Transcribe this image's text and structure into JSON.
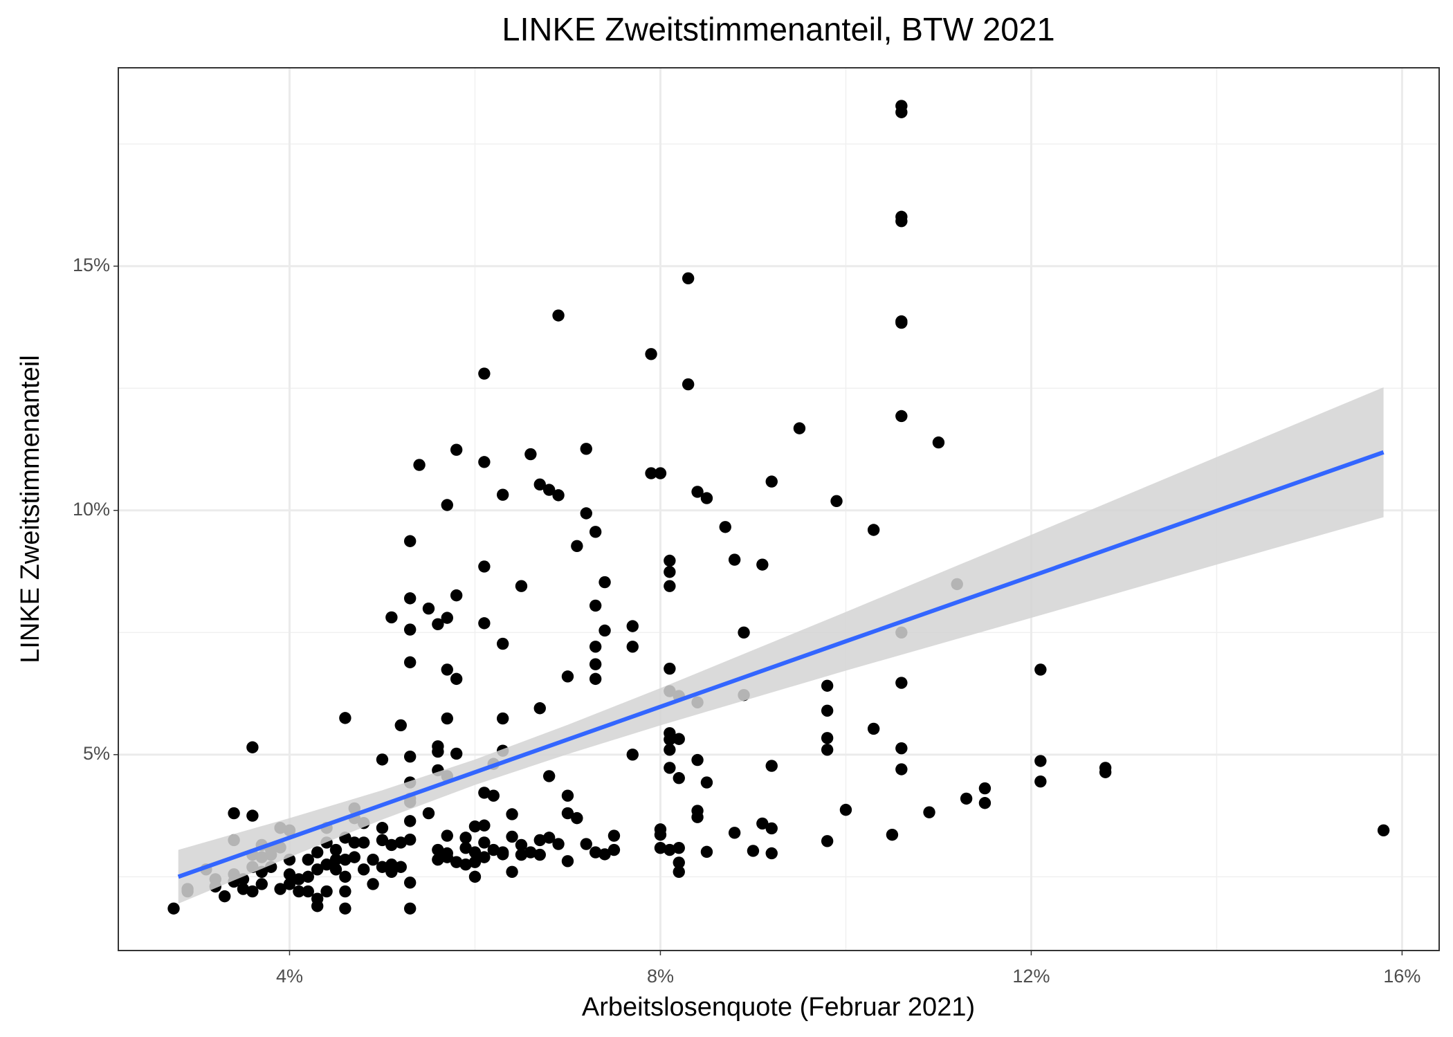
{
  "chart_data": {
    "type": "scatter",
    "title": "LINKE Zweitstimmenanteil, BTW 2021",
    "x_label": "Arbeitslosenquote (Februar 2021)",
    "y_label": "LINKE Zweitstimmenanteil",
    "xlim": [
      2.153,
      16.4
    ],
    "ylim": [
      0.99,
      19.06
    ],
    "xticks": [
      {
        "value": 4,
        "label": "4%"
      },
      {
        "value": 8,
        "label": "8%"
      },
      {
        "value": 12,
        "label": "12%"
      },
      {
        "value": 16,
        "label": "16%"
      }
    ],
    "yticks": [
      {
        "value": 5,
        "label": "5%"
      },
      {
        "value": 10,
        "label": "10%"
      },
      {
        "value": 15,
        "label": "15%"
      }
    ],
    "x_minor_grid": [
      6,
      10,
      14
    ],
    "y_minor_grid": [
      2.5,
      7.5,
      12.5,
      17.5
    ],
    "grid": true,
    "point_color": "#000000",
    "x": [
      10.6,
      10.6,
      10.6,
      10.6,
      10.6,
      10.6,
      10.6,
      10.6,
      10.6,
      10.6,
      10.6,
      6.9,
      6.9,
      8.3,
      8.3,
      7.9,
      6.1,
      6.1,
      6.1,
      6.1,
      6.1,
      6.1,
      5.8,
      5.8,
      5.8,
      5.8,
      5.4,
      5.3,
      5.3,
      5.3,
      5.3,
      5.3,
      5.3,
      5.3,
      5.3,
      5.3,
      5.3,
      5.3,
      5.3,
      6.6,
      6.7,
      6.7,
      6.8,
      6.8,
      6.9,
      7.2,
      7.2,
      7.2,
      7.3,
      7.3,
      7.3,
      7.3,
      7.3,
      7.1,
      7.1,
      7.0,
      7.0,
      7.0,
      7.0,
      7.4,
      7.4,
      7.4,
      6.3,
      6.3,
      6.3,
      6.3,
      5.7,
      5.7,
      5.7,
      5.7,
      5.7,
      5.7,
      5.7,
      5.6,
      5.6,
      5.6,
      5.6,
      5.5,
      5.5,
      5.1,
      6.5,
      8.0,
      8.0,
      8.0,
      8.0,
      7.9,
      8.4,
      8.4,
      8.4,
      8.4,
      8.4,
      8.5,
      8.5,
      8.5,
      8.1,
      8.1,
      8.1,
      8.1,
      8.1,
      8.1,
      8.1,
      8.1,
      8.1,
      8.1,
      8.2,
      8.2,
      8.2,
      8.2,
      8.2,
      8.2,
      8.7,
      8.8,
      8.8,
      8.9,
      8.9,
      9.1,
      9.1,
      9.2,
      9.2,
      9.2,
      9.2,
      9.0,
      9.5,
      9.9,
      9.8,
      9.8,
      9.8,
      9.8,
      9.8,
      10.0,
      10.3,
      10.3,
      10.5,
      10.9,
      11.0,
      11.2,
      11.3,
      11.5,
      11.5,
      12.1,
      12.1,
      12.1,
      12.8,
      12.8,
      15.8,
      7.7,
      7.7,
      7.7,
      7.5,
      7.5,
      6.0,
      6.0,
      6.2,
      6.2,
      6.3,
      6.4,
      6.4,
      6.4,
      5.9,
      5.9,
      2.75,
      2.9,
      2.9,
      3.1,
      3.2,
      3.2,
      3.3,
      3.4,
      3.4,
      3.4,
      3.4,
      3.5,
      3.5,
      3.6,
      3.6,
      3.6,
      3.6,
      3.6,
      3.7,
      3.7,
      3.7,
      3.7,
      3.8,
      3.8,
      3.9,
      3.9,
      3.9,
      4.0,
      4.0,
      4.0,
      4.0,
      4.1,
      4.1,
      4.2,
      4.2,
      4.3,
      4.3,
      4.3,
      4.3,
      4.4,
      4.4,
      4.4,
      4.4,
      4.5,
      4.5,
      4.6,
      4.6,
      4.6,
      4.6,
      4.6,
      4.6,
      4.7,
      4.7,
      4.7,
      4.7,
      4.8,
      4.8,
      4.8,
      4.9,
      4.9,
      5.0,
      5.0,
      5.0,
      5.0,
      5.1,
      5.1,
      5.1,
      5.2,
      5.2,
      5.2,
      5.6,
      5.6,
      5.7,
      5.8,
      5.9,
      6.0,
      6.0,
      6.1,
      6.1,
      6.2,
      6.3,
      6.5,
      6.5,
      6.6,
      6.7,
      6.7,
      6.8,
      7.3,
      4.2,
      3.8,
      4.5
    ],
    "y": [
      18.28,
      18.15,
      16.01,
      15.92,
      13.87,
      13.84,
      11.93,
      7.5,
      6.47,
      5.13,
      4.7,
      13.99,
      3.17,
      14.75,
      12.58,
      13.2,
      12.8,
      10.99,
      8.85,
      7.69,
      4.22,
      3.55,
      11.24,
      8.26,
      6.55,
      5.02,
      10.93,
      9.37,
      8.2,
      7.56,
      6.89,
      4.96,
      4.43,
      4.1,
      4.03,
      3.64,
      3.26,
      2.38,
      1.85,
      11.15,
      10.53,
      5.95,
      10.42,
      4.56,
      10.31,
      11.26,
      9.94,
      3.17,
      9.56,
      8.05,
      7.21,
      6.85,
      6.55,
      9.27,
      3.7,
      6.6,
      4.16,
      3.8,
      2.82,
      8.53,
      7.54,
      2.96,
      10.32,
      7.27,
      5.74,
      5.08,
      10.11,
      7.8,
      6.74,
      5.74,
      4.56,
      3.34,
      2.98,
      7.67,
      5.17,
      5.06,
      4.68,
      7.99,
      3.8,
      7.81,
      8.45,
      10.76,
      3.47,
      3.36,
      3.09,
      10.76,
      10.38,
      6.07,
      4.89,
      3.85,
      3.72,
      10.25,
      4.43,
      3.01,
      8.97,
      8.74,
      8.45,
      6.76,
      6.3,
      5.44,
      5.31,
      5.1,
      4.73,
      3.05,
      6.2,
      5.32,
      4.52,
      3.09,
      2.79,
      2.6,
      9.66,
      8.99,
      3.4,
      7.5,
      6.22,
      8.89,
      3.59,
      10.59,
      4.77,
      3.49,
      2.98,
      3.03,
      11.68,
      10.19,
      6.41,
      5.9,
      5.34,
      5.1,
      3.23,
      3.87,
      9.6,
      5.53,
      3.36,
      3.82,
      11.39,
      8.49,
      4.1,
      4.31,
      4.01,
      6.74,
      4.87,
      4.45,
      4.73,
      4.64,
      3.45,
      7.63,
      7.21,
      5.0,
      3.34,
      3.05,
      2.5,
      3.53,
      4.81,
      4.16,
      2.96,
      3.78,
      3.32,
      2.6,
      3.09,
      2.75,
      1.85,
      2.25,
      2.2,
      2.65,
      2.45,
      2.3,
      2.1,
      3.8,
      3.25,
      2.55,
      2.4,
      2.45,
      2.25,
      5.15,
      3.75,
      2.95,
      2.7,
      2.2,
      3.15,
      2.9,
      2.6,
      2.35,
      3.05,
      2.7,
      3.1,
      3.5,
      2.25,
      3.45,
      2.85,
      2.55,
      2.35,
      2.45,
      2.2,
      2.85,
      2.2,
      3.0,
      2.65,
      2.05,
      1.9,
      3.5,
      3.2,
      2.75,
      2.2,
      3.05,
      2.85,
      5.75,
      3.3,
      2.85,
      2.5,
      2.2,
      1.85,
      3.9,
      3.7,
      3.2,
      2.9,
      3.6,
      3.2,
      2.65,
      2.85,
      2.35,
      4.9,
      3.5,
      3.25,
      2.7,
      3.15,
      2.6,
      2.75,
      5.6,
      3.2,
      2.7,
      3.05,
      2.85,
      2.9,
      2.8,
      3.3,
      3.0,
      2.8,
      3.2,
      2.9,
      3.05,
      3.0,
      3.15,
      2.95,
      3.0,
      3.25,
      2.95,
      3.3,
      3.0,
      2.5,
      2.95,
      2.65
    ],
    "smooth": {
      "color": "#3366ff",
      "band_color": "#d4d4d4",
      "x": [
        2.8,
        4,
        5,
        6,
        7,
        8,
        10,
        12,
        14,
        15.8
      ],
      "y": [
        2.5,
        3.3,
        3.97,
        4.64,
        5.31,
        5.98,
        7.32,
        8.65,
        9.99,
        11.19
      ],
      "ymin": [
        1.95,
        2.9,
        3.67,
        4.38,
        5.01,
        5.6,
        6.72,
        7.8,
        8.89,
        9.86
      ],
      "ymax": [
        3.05,
        3.7,
        4.27,
        4.9,
        5.61,
        6.36,
        7.92,
        9.5,
        11.09,
        12.52
      ]
    }
  }
}
